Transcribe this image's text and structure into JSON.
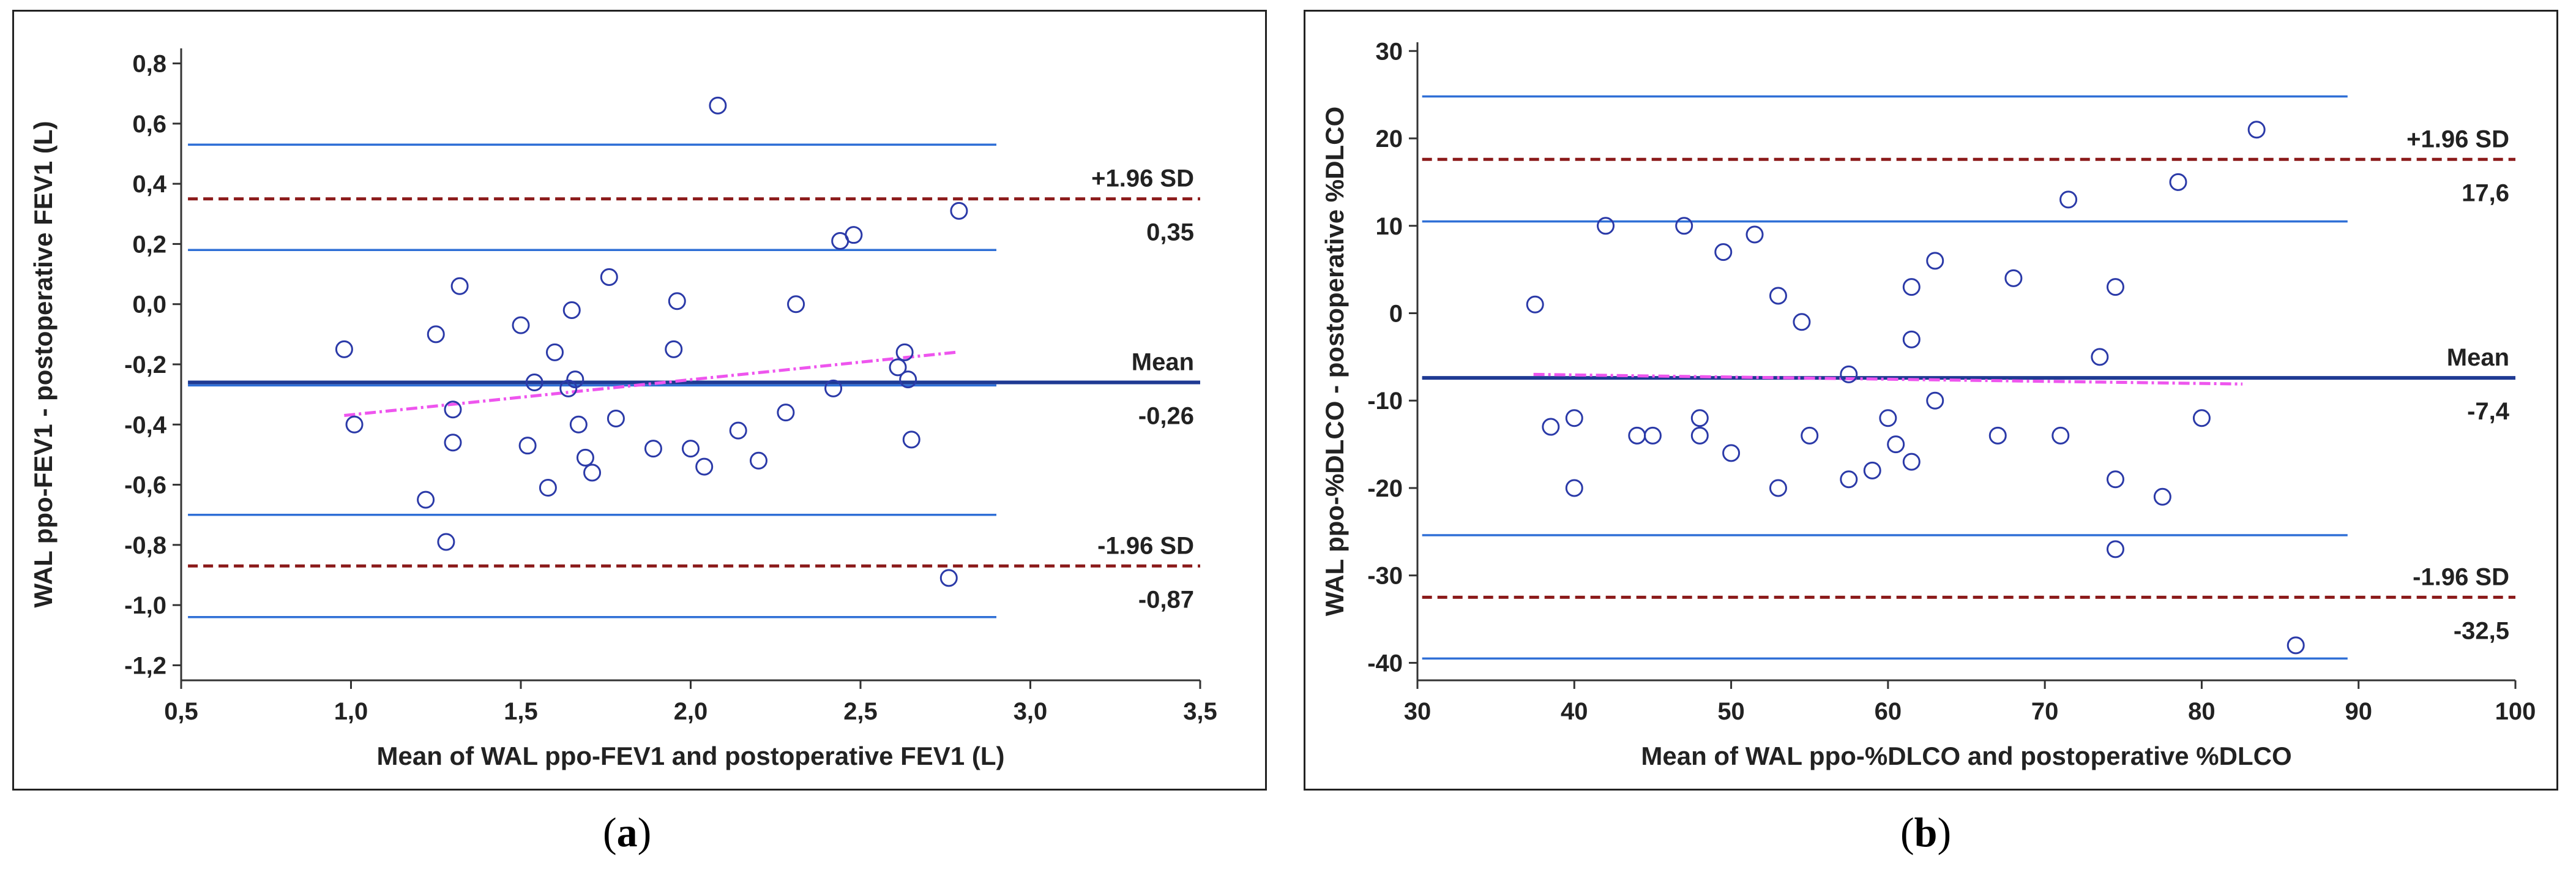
{
  "captions": {
    "a": "a",
    "b": "b"
  },
  "chart_data": [
    {
      "type": "scatter",
      "panel": "a",
      "title": "",
      "xlabel": "Mean of WAL ppo-FEV1 and postoperative FEV1 (L)",
      "ylabel": "WAL ppo-FEV1 - postoperative FEV1 (L)",
      "xlim": [
        0.5,
        3.5
      ],
      "ylim": [
        -1.25,
        0.85
      ],
      "xticks": [
        0.5,
        1.0,
        1.5,
        2.0,
        2.5,
        3.0,
        3.5
      ],
      "yticks": [
        -1.2,
        -1.0,
        -0.8,
        -0.6,
        -0.4,
        -0.2,
        0.0,
        0.2,
        0.4,
        0.6,
        0.8
      ],
      "xtick_labels": [
        "0,5",
        "1,0",
        "1,5",
        "2,0",
        "2,5",
        "3,0",
        "3,5"
      ],
      "ytick_labels": [
        "-1,2",
        "-1,0",
        "-0,8",
        "-0,6",
        "-0,4",
        "-0,2",
        "0,0",
        "0,2",
        "0,4",
        "0,6",
        "0,8"
      ],
      "lines_x_range": [
        0.52,
        2.9
      ],
      "mean": {
        "value": -0.26,
        "label": "Mean",
        "value_label": "-0,26",
        "color": "#1f3a93"
      },
      "upper_loa": {
        "value": 0.35,
        "label": "+1.96 SD",
        "value_label": "0,35",
        "color": "#8b1a1a"
      },
      "lower_loa": {
        "value": -0.87,
        "label": "-1.96 SD",
        "value_label": "-0,87",
        "color": "#8b1a1a"
      },
      "ci_lines": [
        0.53,
        0.18,
        -0.27,
        -0.7,
        -1.04
      ],
      "regression": {
        "x": [
          0.98,
          2.78
        ],
        "y": [
          -0.37,
          -0.16
        ],
        "color": "#ee55ee"
      },
      "points": [
        [
          0.98,
          -0.15
        ],
        [
          1.01,
          -0.4
        ],
        [
          1.22,
          -0.65
        ],
        [
          1.25,
          -0.1
        ],
        [
          1.28,
          -0.79
        ],
        [
          1.3,
          -0.35
        ],
        [
          1.3,
          -0.46
        ],
        [
          1.32,
          0.06
        ],
        [
          1.5,
          -0.07
        ],
        [
          1.52,
          -0.47
        ],
        [
          1.54,
          -0.26
        ],
        [
          1.58,
          -0.61
        ],
        [
          1.6,
          -0.16
        ],
        [
          1.64,
          -0.28
        ],
        [
          1.65,
          -0.02
        ],
        [
          1.66,
          -0.25
        ],
        [
          1.67,
          -0.4
        ],
        [
          1.69,
          -0.51
        ],
        [
          1.71,
          -0.56
        ],
        [
          1.76,
          0.09
        ],
        [
          1.78,
          -0.38
        ],
        [
          1.89,
          -0.48
        ],
        [
          1.95,
          -0.15
        ],
        [
          1.96,
          0.01
        ],
        [
          2.0,
          -0.48
        ],
        [
          2.04,
          -0.54
        ],
        [
          2.08,
          0.66
        ],
        [
          2.14,
          -0.42
        ],
        [
          2.2,
          -0.52
        ],
        [
          2.28,
          -0.36
        ],
        [
          2.31,
          0.0
        ],
        [
          2.42,
          -0.28
        ],
        [
          2.44,
          0.21
        ],
        [
          2.48,
          0.23
        ],
        [
          2.61,
          -0.21
        ],
        [
          2.63,
          -0.16
        ],
        [
          2.64,
          -0.25
        ],
        [
          2.65,
          -0.45
        ],
        [
          2.76,
          -0.91
        ],
        [
          2.79,
          0.31
        ]
      ]
    },
    {
      "type": "scatter",
      "panel": "b",
      "title": "",
      "xlabel": "Mean of WAL ppo-%DLCO and postoperative %DLCO",
      "ylabel": "WAL ppo-%DLCO - postoperative %DLCO",
      "xlim": [
        30,
        100
      ],
      "ylim": [
        -42,
        31
      ],
      "xticks": [
        30,
        40,
        50,
        60,
        70,
        80,
        90,
        100
      ],
      "yticks": [
        -40,
        -30,
        -20,
        -10,
        0,
        10,
        20,
        30
      ],
      "xtick_labels": [
        "30",
        "40",
        "50",
        "60",
        "70",
        "80",
        "90",
        "100"
      ],
      "ytick_labels": [
        "-40",
        "-30",
        "-20",
        "-10",
        "0",
        "10",
        "20",
        "30"
      ],
      "lines_x_range": [
        30.3,
        89.3
      ],
      "mean": {
        "value": -7.4,
        "label": "Mean",
        "value_label": "-7,4",
        "color": "#1f3a93"
      },
      "upper_loa": {
        "value": 17.6,
        "label": "+1.96 SD",
        "value_label": "17,6",
        "color": "#8b1a1a"
      },
      "lower_loa": {
        "value": -32.5,
        "label": "-1.96 SD",
        "value_label": "-32,5",
        "color": "#8b1a1a"
      },
      "ci_lines": [
        24.8,
        10.5,
        -7.4,
        -25.4,
        -39.5
      ],
      "regression": {
        "x": [
          37.4,
          82.6
        ],
        "y": [
          -7.0,
          -8.1
        ],
        "color": "#ee55ee"
      },
      "points": [
        [
          37.5,
          1
        ],
        [
          38.5,
          -13
        ],
        [
          40,
          -20
        ],
        [
          40,
          -12
        ],
        [
          42,
          10
        ],
        [
          44,
          -14
        ],
        [
          45,
          -14
        ],
        [
          47,
          10
        ],
        [
          48,
          -12
        ],
        [
          48,
          -14
        ],
        [
          49.5,
          7
        ],
        [
          50,
          -16
        ],
        [
          51.5,
          9
        ],
        [
          53,
          -20
        ],
        [
          53,
          2
        ],
        [
          54.5,
          -1
        ],
        [
          55,
          -14
        ],
        [
          57.5,
          -7
        ],
        [
          57.5,
          -19
        ],
        [
          59,
          -18
        ],
        [
          60,
          -12
        ],
        [
          60.5,
          -15
        ],
        [
          61.5,
          -17
        ],
        [
          61.5,
          -3
        ],
        [
          61.5,
          3
        ],
        [
          63,
          -10
        ],
        [
          63,
          6
        ],
        [
          67,
          -14
        ],
        [
          68,
          4
        ],
        [
          71,
          -14
        ],
        [
          71.5,
          13
        ],
        [
          73.5,
          -5
        ],
        [
          74.5,
          3
        ],
        [
          74.5,
          -19
        ],
        [
          74.5,
          -27
        ],
        [
          77.5,
          -21
        ],
        [
          78.5,
          15
        ],
        [
          80,
          -12
        ],
        [
          83.5,
          21
        ],
        [
          86,
          -38
        ]
      ]
    }
  ]
}
